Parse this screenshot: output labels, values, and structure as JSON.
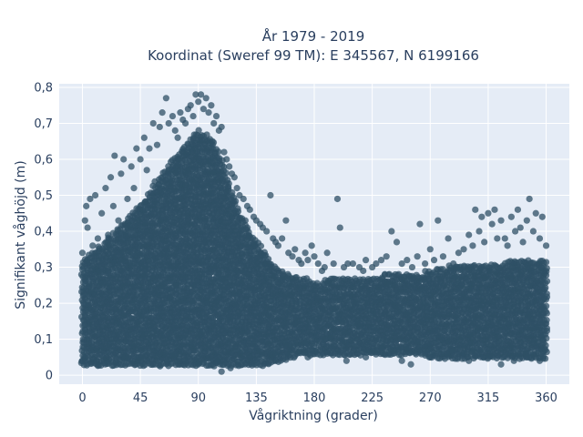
{
  "chart_data": {
    "type": "scatter",
    "title": [
      "År 1979 - 2019",
      "Koordinat (Sweref 99 TM): E 345567, N 6199166"
    ],
    "xlabel": "Vågriktning (grader)",
    "ylabel": "Signifikant våghöjd (m)",
    "xlim": [
      -18,
      378
    ],
    "ylim": [
      -0.025,
      0.81
    ],
    "x_ticks": [
      0,
      45,
      90,
      135,
      180,
      225,
      270,
      315,
      360
    ],
    "x_tick_labels": [
      "0",
      "45",
      "90",
      "135",
      "180",
      "225",
      "270",
      "315",
      "360"
    ],
    "y_ticks": [
      0,
      0.1,
      0.2,
      0.3,
      0.4,
      0.5,
      0.6,
      0.7,
      0.8
    ],
    "y_tick_labels": [
      "0",
      "0,1",
      "0,2",
      "0,3",
      "0,4",
      "0,5",
      "0,6",
      "0,7",
      "0,8"
    ],
    "grid": true,
    "background_color": "#e5ecf6",
    "marker_color": "#2f5066",
    "series": [
      {
        "name": "",
        "points": [
          [
            0,
            0.04
          ],
          [
            0,
            0.34
          ],
          [
            2,
            0.43
          ],
          [
            3,
            0.47
          ],
          [
            4,
            0.41
          ],
          [
            6,
            0.49
          ],
          [
            8,
            0.36
          ],
          [
            10,
            0.5
          ],
          [
            12,
            0.38
          ],
          [
            15,
            0.45
          ],
          [
            18,
            0.52
          ],
          [
            20,
            0.39
          ],
          [
            22,
            0.55
          ],
          [
            24,
            0.47
          ],
          [
            25,
            0.61
          ],
          [
            28,
            0.43
          ],
          [
            30,
            0.56
          ],
          [
            32,
            0.6
          ],
          [
            35,
            0.49
          ],
          [
            38,
            0.58
          ],
          [
            40,
            0.52
          ],
          [
            42,
            0.63
          ],
          [
            45,
            0.6
          ],
          [
            48,
            0.66
          ],
          [
            50,
            0.57
          ],
          [
            52,
            0.63
          ],
          [
            55,
            0.7
          ],
          [
            58,
            0.64
          ],
          [
            60,
            0.69
          ],
          [
            62,
            0.73
          ],
          [
            65,
            0.77
          ],
          [
            67,
            0.7
          ],
          [
            70,
            0.72
          ],
          [
            72,
            0.68
          ],
          [
            74,
            0.66
          ],
          [
            76,
            0.73
          ],
          [
            78,
            0.71
          ],
          [
            80,
            0.7
          ],
          [
            82,
            0.74
          ],
          [
            84,
            0.75
          ],
          [
            86,
            0.72
          ],
          [
            88,
            0.78
          ],
          [
            90,
            0.76
          ],
          [
            92,
            0.78
          ],
          [
            94,
            0.74
          ],
          [
            96,
            0.77
          ],
          [
            98,
            0.73
          ],
          [
            100,
            0.75
          ],
          [
            102,
            0.7
          ],
          [
            104,
            0.72
          ],
          [
            106,
            0.68
          ],
          [
            108,
            0.69
          ],
          [
            110,
            0.62
          ],
          [
            112,
            0.6
          ],
          [
            114,
            0.58
          ],
          [
            116,
            0.56
          ],
          [
            118,
            0.55
          ],
          [
            120,
            0.52
          ],
          [
            122,
            0.5
          ],
          [
            125,
            0.49
          ],
          [
            128,
            0.47
          ],
          [
            130,
            0.46
          ],
          [
            133,
            0.44
          ],
          [
            135,
            0.43
          ],
          [
            138,
            0.42
          ],
          [
            140,
            0.41
          ],
          [
            143,
            0.4
          ],
          [
            146,
            0.5
          ],
          [
            148,
            0.38
          ],
          [
            150,
            0.37
          ],
          [
            152,
            0.36
          ],
          [
            155,
            0.38
          ],
          [
            158,
            0.43
          ],
          [
            160,
            0.34
          ],
          [
            163,
            0.33
          ],
          [
            165,
            0.35
          ],
          [
            168,
            0.32
          ],
          [
            170,
            0.31
          ],
          [
            173,
            0.34
          ],
          [
            175,
            0.32
          ],
          [
            178,
            0.36
          ],
          [
            180,
            0.33
          ],
          [
            183,
            0.31
          ],
          [
            186,
            0.29
          ],
          [
            188,
            0.3
          ],
          [
            190,
            0.34
          ],
          [
            195,
            0.31
          ],
          [
            198,
            0.49
          ],
          [
            200,
            0.41
          ],
          [
            203,
            0.3
          ],
          [
            206,
            0.31
          ],
          [
            210,
            0.31
          ],
          [
            215,
            0.3
          ],
          [
            218,
            0.29
          ],
          [
            220,
            0.32
          ],
          [
            225,
            0.3
          ],
          [
            228,
            0.31
          ],
          [
            232,
            0.32
          ],
          [
            236,
            0.33
          ],
          [
            240,
            0.4
          ],
          [
            244,
            0.37
          ],
          [
            248,
            0.31
          ],
          [
            252,
            0.32
          ],
          [
            256,
            0.3
          ],
          [
            260,
            0.33
          ],
          [
            262,
            0.42
          ],
          [
            266,
            0.31
          ],
          [
            270,
            0.35
          ],
          [
            273,
            0.32
          ],
          [
            276,
            0.43
          ],
          [
            280,
            0.33
          ],
          [
            284,
            0.38
          ],
          [
            288,
            0.31
          ],
          [
            292,
            0.34
          ],
          [
            296,
            0.35
          ],
          [
            300,
            0.39
          ],
          [
            303,
            0.36
          ],
          [
            305,
            0.46
          ],
          [
            308,
            0.4
          ],
          [
            310,
            0.44
          ],
          [
            312,
            0.37
          ],
          [
            315,
            0.45
          ],
          [
            318,
            0.42
          ],
          [
            320,
            0.46
          ],
          [
            322,
            0.38
          ],
          [
            325,
            0.43
          ],
          [
            328,
            0.38
          ],
          [
            330,
            0.36
          ],
          [
            333,
            0.44
          ],
          [
            336,
            0.4
          ],
          [
            338,
            0.46
          ],
          [
            340,
            0.41
          ],
          [
            342,
            0.37
          ],
          [
            345,
            0.43
          ],
          [
            347,
            0.49
          ],
          [
            350,
            0.4
          ],
          [
            352,
            0.45
          ],
          [
            355,
            0.38
          ],
          [
            357,
            0.44
          ],
          [
            360,
            0.36
          ],
          [
            20,
            0.08
          ],
          [
            45,
            0.05
          ],
          [
            60,
            0.06
          ],
          [
            75,
            0.04
          ],
          [
            90,
            0.03
          ],
          [
            105,
            0.04
          ],
          [
            115,
            0.02
          ],
          [
            108,
            0.01
          ],
          [
            130,
            0.05
          ],
          [
            150,
            0.04
          ],
          [
            160,
            0.08
          ],
          [
            175,
            0.05
          ],
          [
            190,
            0.06
          ],
          [
            205,
            0.04
          ],
          [
            220,
            0.05
          ],
          [
            235,
            0.06
          ],
          [
            248,
            0.04
          ],
          [
            255,
            0.03
          ],
          [
            270,
            0.05
          ],
          [
            283,
            0.06
          ],
          [
            300,
            0.04
          ],
          [
            315,
            0.05
          ],
          [
            325,
            0.03
          ],
          [
            335,
            0.04
          ],
          [
            345,
            0.05
          ],
          [
            355,
            0.04
          ]
        ],
        "band": [
          [
            0,
            0.03,
            0.32
          ],
          [
            10,
            0.03,
            0.35
          ],
          [
            20,
            0.03,
            0.38
          ],
          [
            30,
            0.03,
            0.42
          ],
          [
            40,
            0.03,
            0.46
          ],
          [
            50,
            0.03,
            0.5
          ],
          [
            60,
            0.03,
            0.55
          ],
          [
            70,
            0.03,
            0.6
          ],
          [
            80,
            0.03,
            0.64
          ],
          [
            90,
            0.03,
            0.68
          ],
          [
            100,
            0.03,
            0.66
          ],
          [
            110,
            0.03,
            0.58
          ],
          [
            120,
            0.03,
            0.47
          ],
          [
            130,
            0.03,
            0.4
          ],
          [
            140,
            0.03,
            0.35
          ],
          [
            150,
            0.04,
            0.3
          ],
          [
            160,
            0.05,
            0.28
          ],
          [
            170,
            0.06,
            0.27
          ],
          [
            180,
            0.06,
            0.26
          ],
          [
            200,
            0.06,
            0.27
          ],
          [
            220,
            0.06,
            0.27
          ],
          [
            240,
            0.06,
            0.28
          ],
          [
            260,
            0.06,
            0.28
          ],
          [
            280,
            0.05,
            0.3
          ],
          [
            300,
            0.05,
            0.31
          ],
          [
            320,
            0.05,
            0.31
          ],
          [
            340,
            0.05,
            0.32
          ],
          [
            360,
            0.05,
            0.32
          ]
        ]
      }
    ]
  }
}
